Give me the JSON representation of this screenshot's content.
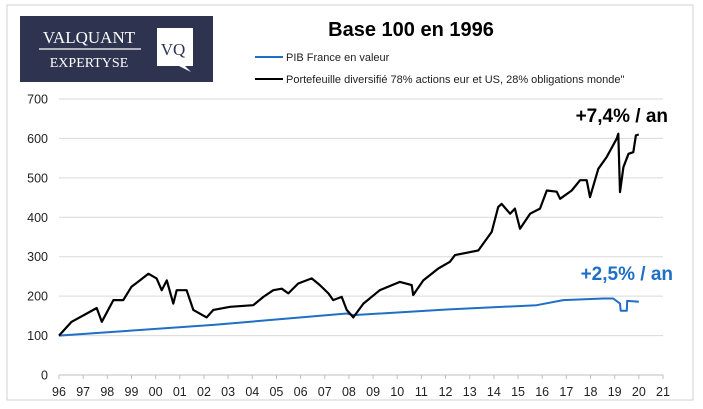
{
  "logo": {
    "line1": "VALQUANT",
    "line2": "EXPERTYSE",
    "badge": "VQ",
    "bg_color": "#2e3450"
  },
  "chart_data": {
    "type": "line",
    "title": "Base 100 en 1996",
    "xlabel": "",
    "ylabel": "",
    "xlim": [
      1996,
      2021
    ],
    "ylim": [
      0,
      700
    ],
    "yticks": [
      0,
      100,
      200,
      300,
      400,
      500,
      600,
      700
    ],
    "xticks": [
      1996,
      1997,
      1998,
      1999,
      2000,
      2001,
      2002,
      2003,
      2004,
      2005,
      2006,
      2007,
      2008,
      2009,
      2010,
      2011,
      2012,
      2013,
      2014,
      2015,
      2016,
      2017,
      2018,
      2019,
      2020,
      2021
    ],
    "xtick_labels": [
      "96",
      "97",
      "98",
      "99",
      "00",
      "01",
      "02",
      "03",
      "04",
      "05",
      "06",
      "07",
      "08",
      "09",
      "10",
      "11",
      "12",
      "13",
      "14",
      "15",
      "16",
      "17",
      "18",
      "19",
      "20",
      "21"
    ],
    "grid": "horizontal",
    "legend_position": "top",
    "series": [
      {
        "name": "PIB France en valeur",
        "color": "#1f6fc5",
        "x": [
          1996.0,
          1998.39,
          2002.39,
          2007.91,
          2008.18,
          2012.05,
          2015.77,
          2016.87,
          2018.53,
          2018.94,
          2019.22,
          2019.25,
          2019.5,
          2019.52,
          2020.0
        ],
        "y": [
          100,
          110,
          127,
          156,
          152,
          166,
          177,
          190,
          194,
          194,
          181,
          163,
          163,
          188,
          186
        ],
        "annotation": "+2,5% / an"
      },
      {
        "name": "Portefeuille diversifié 78% actions eur et US, 28% obligations monde\"",
        "color": "#000000",
        "x": [
          1996.0,
          1996.52,
          1997.15,
          1997.56,
          1997.77,
          1998.25,
          1998.66,
          1999.0,
          1999.35,
          1999.7,
          2000.04,
          2000.25,
          2000.46,
          2000.73,
          2000.87,
          2001.28,
          2001.56,
          2002.11,
          2002.39,
          2003.08,
          2004.04,
          2004.46,
          2004.87,
          2005.22,
          2005.49,
          2005.9,
          2006.46,
          2006.8,
          2007.15,
          2007.35,
          2007.7,
          2007.91,
          2008.18,
          2008.6,
          2009.28,
          2010.11,
          2010.6,
          2010.66,
          2011.08,
          2011.7,
          2012.18,
          2012.39,
          2013.36,
          2013.91,
          2014.18,
          2014.32,
          2014.67,
          2014.87,
          2015.08,
          2015.5,
          2015.91,
          2016.19,
          2016.6,
          2016.74,
          2017.22,
          2017.57,
          2017.84,
          2017.98,
          2018.32,
          2018.67,
          2019.08,
          2019.15,
          2019.22,
          2019.36,
          2019.57,
          2019.77,
          2019.88,
          2020.0
        ],
        "y": [
          100,
          135,
          156,
          170,
          135,
          190,
          190,
          224,
          240,
          257,
          245,
          215,
          240,
          181,
          215,
          215,
          165,
          146,
          165,
          173,
          177,
          198,
          215,
          219,
          207,
          232,
          245,
          228,
          207,
          190,
          198,
          165,
          146,
          181,
          215,
          236,
          228,
          203,
          240,
          270,
          287,
          304,
          316,
          363,
          426,
          434,
          409,
          422,
          371,
          409,
          422,
          468,
          465,
          447,
          468,
          494,
          494,
          451,
          523,
          553,
          599,
          612,
          464,
          527,
          561,
          565,
          608,
          610
        ],
        "annotation": "+7,4% / an"
      }
    ]
  }
}
